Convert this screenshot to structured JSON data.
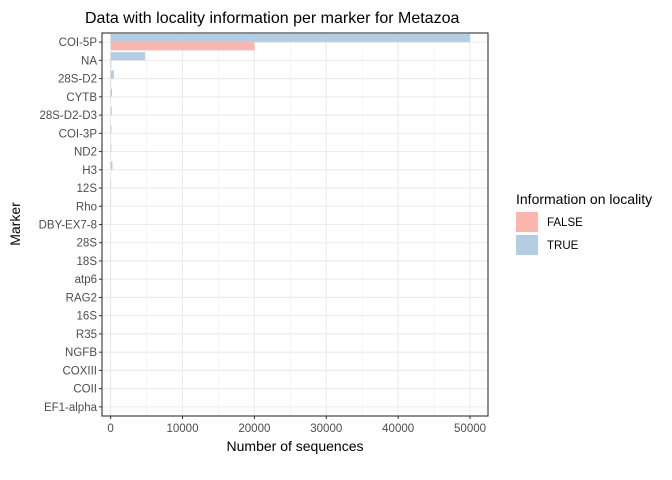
{
  "chart_data": {
    "type": "bar",
    "orientation": "horizontal",
    "title": "Data with locality information per marker for Metazoa",
    "xlabel": "Number of sequences",
    "ylabel": "Marker",
    "xlim": [
      -1200,
      52500
    ],
    "x_ticks": [
      0,
      10000,
      20000,
      30000,
      40000,
      50000
    ],
    "grid": true,
    "categories": [
      "COI-5P",
      "NA",
      "28S-D2",
      "CYTB",
      "28S-D2-D3",
      "COI-3P",
      "ND2",
      "H3",
      "12S",
      "Rho",
      "DBY-EX7-8",
      "28S",
      "18S",
      "atp6",
      "RAG2",
      "16S",
      "R35",
      "NGFB",
      "COXIII",
      "COII",
      "EF1-alpha"
    ],
    "series": [
      {
        "name": "FALSE",
        "color": "#FBB4AE",
        "values": [
          20000,
          100,
          50,
          30,
          20,
          20,
          10,
          10,
          5,
          5,
          5,
          5,
          5,
          5,
          5,
          5,
          5,
          5,
          5,
          5,
          5
        ]
      },
      {
        "name": "TRUE",
        "color": "#B3CDE3",
        "values": [
          50000,
          4800,
          450,
          200,
          150,
          120,
          100,
          250,
          60,
          50,
          45,
          40,
          40,
          35,
          30,
          30,
          25,
          20,
          20,
          15,
          10
        ]
      }
    ],
    "legend": {
      "title": "Information on locality",
      "placement": "right"
    }
  }
}
